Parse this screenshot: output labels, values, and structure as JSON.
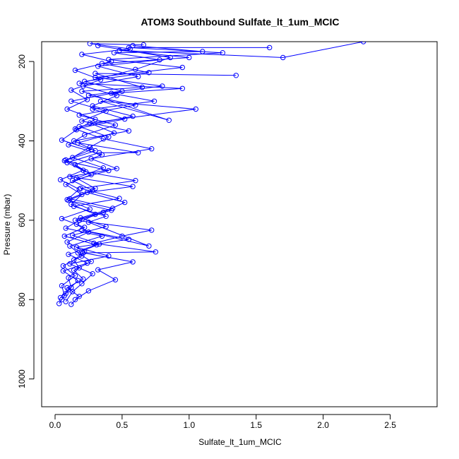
{
  "chart_data": {
    "type": "scatter",
    "title": "ATOM3 Southbound Sulfate_lt_1um_MCIC",
    "xlabel": "Sulfate_lt_1um_MCIC",
    "ylabel": "Pressure (mbar)",
    "xlim": [
      -0.1,
      2.85
    ],
    "ylim": [
      1070,
      150
    ],
    "y_reversed": true,
    "x_ticks": [
      "0.0",
      "0.5",
      "1.0",
      "1.5",
      "2.0",
      "2.5"
    ],
    "y_ticks": [
      "200",
      "400",
      "600",
      "800",
      "1000"
    ],
    "grid": false,
    "line_color": "#0000ff",
    "marker": "open-circle",
    "series": [
      {
        "points": [
          [
            0.05,
            800
          ],
          [
            0.08,
            785
          ],
          [
            0.12,
            770
          ],
          [
            0.1,
            745
          ],
          [
            0.18,
            720
          ],
          [
            0.14,
            700
          ],
          [
            0.22,
            680
          ],
          [
            0.09,
            655
          ],
          [
            0.25,
            630
          ],
          [
            0.16,
            610
          ],
          [
            0.3,
            585
          ],
          [
            0.12,
            560
          ],
          [
            0.2,
            535
          ],
          [
            0.08,
            510
          ],
          [
            0.27,
            485
          ],
          [
            0.15,
            460
          ],
          [
            0.35,
            435
          ],
          [
            0.1,
            410
          ],
          [
            0.22,
            385
          ],
          [
            0.45,
            360
          ],
          [
            0.18,
            335
          ],
          [
            0.6,
            310
          ],
          [
            0.25,
            285
          ],
          [
            0.8,
            262
          ],
          [
            0.3,
            240
          ],
          [
            0.95,
            215
          ],
          [
            0.4,
            195
          ],
          [
            1.25,
            178
          ],
          [
            0.55,
            165
          ],
          [
            1.6,
            165
          ]
        ]
      },
      {
        "points": [
          [
            0.03,
            810
          ],
          [
            0.07,
            790
          ],
          [
            0.05,
            765
          ],
          [
            0.15,
            740
          ],
          [
            0.06,
            715
          ],
          [
            0.2,
            690
          ],
          [
            0.11,
            665
          ],
          [
            0.35,
            640
          ],
          [
            0.08,
            620
          ],
          [
            0.18,
            600
          ],
          [
            0.42,
            575
          ],
          [
            0.1,
            550
          ],
          [
            0.28,
            525
          ],
          [
            0.13,
            500
          ],
          [
            0.4,
            475
          ],
          [
            0.07,
            450
          ],
          [
            0.3,
            425
          ],
          [
            0.14,
            400
          ],
          [
            0.55,
            375
          ],
          [
            0.2,
            350
          ],
          [
            0.38,
            325
          ],
          [
            0.12,
            300
          ],
          [
            0.5,
            275
          ],
          [
            0.22,
            250
          ],
          [
            0.7,
            228
          ],
          [
            0.35,
            205
          ],
          [
            1.0,
            190
          ],
          [
            0.48,
            172
          ],
          [
            1.7,
            190
          ],
          [
            2.3,
            150
          ]
        ]
      },
      {
        "points": [
          [
            0.08,
            805
          ],
          [
            0.13,
            780
          ],
          [
            0.2,
            760
          ],
          [
            0.28,
            735
          ],
          [
            0.11,
            710
          ],
          [
            0.4,
            690
          ],
          [
            0.16,
            668
          ],
          [
            0.55,
            648
          ],
          [
            0.2,
            625
          ],
          [
            0.7,
            665
          ],
          [
            0.25,
            605
          ],
          [
            0.38,
            590
          ],
          [
            0.14,
            565
          ],
          [
            0.48,
            545
          ],
          [
            0.19,
            520
          ],
          [
            0.6,
            500
          ],
          [
            0.23,
            478
          ],
          [
            0.09,
            455
          ],
          [
            0.33,
            430
          ],
          [
            0.62,
            430
          ],
          [
            0.17,
            405
          ],
          [
            0.44,
            380
          ],
          [
            0.26,
            355
          ],
          [
            1.05,
            320
          ],
          [
            0.34,
            300
          ],
          [
            0.85,
            348
          ],
          [
            0.2,
            275
          ],
          [
            0.65,
            265
          ],
          [
            0.3,
            230
          ],
          [
            1.35,
            235
          ]
        ]
      },
      {
        "points": [
          [
            0.15,
            800
          ],
          [
            0.25,
            778
          ],
          [
            0.45,
            750
          ],
          [
            0.32,
            725
          ],
          [
            0.58,
            705
          ],
          [
            0.21,
            682
          ],
          [
            0.75,
            680
          ],
          [
            0.29,
            658
          ],
          [
            0.5,
            640
          ],
          [
            0.72,
            625
          ],
          [
            0.15,
            600
          ],
          [
            0.36,
            580
          ],
          [
            0.52,
            555
          ],
          [
            0.24,
            530
          ],
          [
            0.58,
            515
          ],
          [
            0.11,
            490
          ],
          [
            0.46,
            470
          ],
          [
            0.27,
            445
          ],
          [
            0.72,
            420
          ],
          [
            0.36,
            395
          ],
          [
            0.15,
            370
          ],
          [
            0.52,
            345
          ],
          [
            0.28,
            320
          ],
          [
            0.74,
            300
          ],
          [
            0.42,
            280
          ],
          [
            0.95,
            268
          ],
          [
            0.18,
            255
          ],
          [
            0.6,
            220
          ],
          [
            0.86,
            190
          ],
          [
            0.32,
            160
          ]
        ]
      },
      {
        "points": [
          [
            0.04,
            795
          ],
          [
            0.1,
            775
          ],
          [
            0.17,
            752
          ],
          [
            0.06,
            728
          ],
          [
            0.24,
            708
          ],
          [
            0.1,
            686
          ],
          [
            0.31,
            662
          ],
          [
            0.07,
            640
          ],
          [
            0.22,
            618
          ],
          [
            0.05,
            596
          ],
          [
            0.26,
            572
          ],
          [
            0.09,
            548
          ],
          [
            0.18,
            522
          ],
          [
            0.04,
            498
          ],
          [
            0.21,
            474
          ],
          [
            0.08,
            448
          ],
          [
            0.27,
            422
          ],
          [
            0.05,
            398
          ],
          [
            0.16,
            372
          ],
          [
            0.3,
            346
          ],
          [
            0.09,
            320
          ],
          [
            0.24,
            296
          ],
          [
            0.12,
            272
          ],
          [
            0.34,
            246
          ],
          [
            0.15,
            222
          ],
          [
            0.42,
            200
          ],
          [
            0.2,
            182
          ],
          [
            0.56,
            168
          ],
          [
            0.26,
            155
          ],
          [
            0.66,
            158
          ]
        ]
      },
      {
        "points": [
          [
            0.12,
            812
          ],
          [
            0.18,
            792
          ],
          [
            0.09,
            770
          ],
          [
            0.21,
            748
          ],
          [
            0.14,
            726
          ],
          [
            0.27,
            704
          ],
          [
            0.17,
            682
          ],
          [
            0.33,
            660
          ],
          [
            0.13,
            638
          ],
          [
            0.38,
            616
          ],
          [
            0.19,
            594
          ],
          [
            0.43,
            570
          ],
          [
            0.11,
            546
          ],
          [
            0.3,
            520
          ],
          [
            0.16,
            494
          ],
          [
            0.36,
            468
          ],
          [
            0.13,
            442
          ],
          [
            0.26,
            416
          ],
          [
            0.4,
            390
          ],
          [
            0.18,
            364
          ],
          [
            0.58,
            338
          ],
          [
            0.28,
            312
          ],
          [
            0.46,
            286
          ],
          [
            0.21,
            262
          ],
          [
            0.62,
            238
          ],
          [
            0.32,
            212
          ],
          [
            0.78,
            196
          ],
          [
            0.44,
            178
          ],
          [
            1.1,
            175
          ],
          [
            0.58,
            160
          ]
        ]
      }
    ]
  }
}
